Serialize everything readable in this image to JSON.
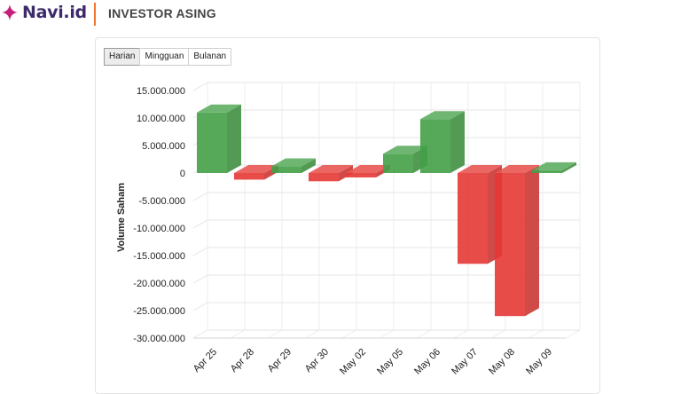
{
  "brand": {
    "name": "Navi.id",
    "accent": "#f0742b",
    "icon": "sparkle-icon"
  },
  "page": {
    "title": "INVESTOR ASING"
  },
  "tabs": [
    {
      "label": "Harian",
      "active": true
    },
    {
      "label": "Mingguan",
      "active": false
    },
    {
      "label": "Bulanan",
      "active": false
    }
  ],
  "colors": {
    "positive": "#43a047",
    "negative": "#e53935"
  },
  "chart_data": {
    "type": "bar",
    "title": "",
    "xlabel": "",
    "ylabel": "Volume Saham",
    "ylim": [
      -30000000,
      15000000
    ],
    "yticks": [
      "15.000.000",
      "10.000.000",
      "5.000.000",
      "0",
      "-5.000.000",
      "-10.000.000",
      "-15.000.000",
      "-20.000.000",
      "-25.000.000",
      "-30.000.000"
    ],
    "categories": [
      "Apr 25",
      "Apr 28",
      "Apr 29",
      "Apr 30",
      "May 02",
      "May 05",
      "May 06",
      "May 07",
      "May 08",
      "May 09"
    ],
    "values": [
      11000000,
      -1200000,
      1200000,
      -1500000,
      -800000,
      3500000,
      9800000,
      -16500000,
      -26000000,
      500000
    ],
    "grid": true,
    "legend": "none",
    "style": "3d"
  }
}
